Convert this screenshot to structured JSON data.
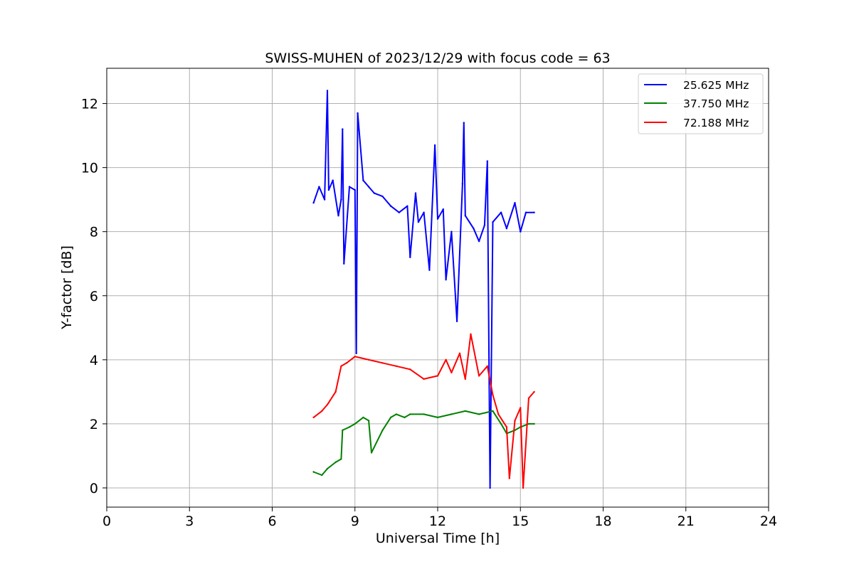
{
  "chart_data": {
    "type": "line",
    "title": "SWISS-MUHEN of 2023/12/29 with focus code = 63",
    "xlabel": "Universal Time [h]",
    "ylabel": "Y-factor [dB]",
    "xlim": [
      0,
      24
    ],
    "ylim": [
      -0.6,
      13.1
    ],
    "xticks": [
      "0",
      "3",
      "6",
      "9",
      "12",
      "15",
      "18",
      "21",
      "24"
    ],
    "yticks": [
      "0",
      "2",
      "4",
      "6",
      "8",
      "10",
      "12"
    ],
    "grid": true,
    "legend_position": "top-right",
    "series": [
      {
        "name": "25.625 MHz",
        "color": "#0000ff",
        "x": [
          7.5,
          7.7,
          7.9,
          8.0,
          8.05,
          8.2,
          8.4,
          8.5,
          8.55,
          8.6,
          8.8,
          9.0,
          9.05,
          9.1,
          9.3,
          9.5,
          9.7,
          10.0,
          10.3,
          10.6,
          10.9,
          11.0,
          11.2,
          11.3,
          11.5,
          11.7,
          11.9,
          12.0,
          12.2,
          12.3,
          12.5,
          12.7,
          12.9,
          12.95,
          13.0,
          13.3,
          13.5,
          13.7,
          13.8,
          13.9,
          14.0,
          14.3,
          14.5,
          14.8,
          15.0,
          15.2,
          15.5
        ],
        "y": [
          8.9,
          9.4,
          9.0,
          12.4,
          9.3,
          9.6,
          8.5,
          9.0,
          11.2,
          7.0,
          9.4,
          9.3,
          4.2,
          11.7,
          9.6,
          9.4,
          9.2,
          9.1,
          8.8,
          8.6,
          8.8,
          7.2,
          9.2,
          8.3,
          8.6,
          6.8,
          10.7,
          8.4,
          8.7,
          6.5,
          8.0,
          5.2,
          9.5,
          11.4,
          8.5,
          8.1,
          7.7,
          8.2,
          10.2,
          0.0,
          8.3,
          8.6,
          8.1,
          8.9,
          8.0,
          8.6,
          8.6
        ]
      },
      {
        "name": "37.750 MHz",
        "color": "#008000",
        "x": [
          7.5,
          7.8,
          8.0,
          8.3,
          8.5,
          8.55,
          8.8,
          9.0,
          9.3,
          9.5,
          9.6,
          10.0,
          10.3,
          10.5,
          10.8,
          11.0,
          11.5,
          12.0,
          12.5,
          13.0,
          13.5,
          14.0,
          14.3,
          14.5,
          14.8,
          15.0,
          15.3,
          15.5
        ],
        "y": [
          0.5,
          0.4,
          0.6,
          0.8,
          0.9,
          1.8,
          1.9,
          2.0,
          2.2,
          2.1,
          1.1,
          1.8,
          2.2,
          2.3,
          2.2,
          2.3,
          2.3,
          2.2,
          2.3,
          2.4,
          2.3,
          2.4,
          2.0,
          1.7,
          1.8,
          1.9,
          2.0,
          2.0
        ]
      },
      {
        "name": "72.188 MHz",
        "color": "#ff0000",
        "x": [
          7.5,
          7.8,
          8.0,
          8.3,
          8.5,
          8.7,
          9.0,
          9.5,
          10.0,
          10.5,
          11.0,
          11.5,
          12.0,
          12.3,
          12.5,
          12.8,
          13.0,
          13.2,
          13.5,
          13.8,
          14.0,
          14.2,
          14.5,
          14.6,
          14.8,
          15.0,
          15.1,
          15.3,
          15.5
        ],
        "y": [
          2.2,
          2.4,
          2.6,
          3.0,
          3.8,
          3.9,
          4.1,
          4.0,
          3.9,
          3.8,
          3.7,
          3.4,
          3.5,
          4.0,
          3.6,
          4.2,
          3.4,
          4.8,
          3.5,
          3.8,
          2.9,
          2.3,
          1.9,
          0.3,
          2.1,
          2.5,
          0.0,
          2.8,
          3.0
        ]
      }
    ]
  }
}
